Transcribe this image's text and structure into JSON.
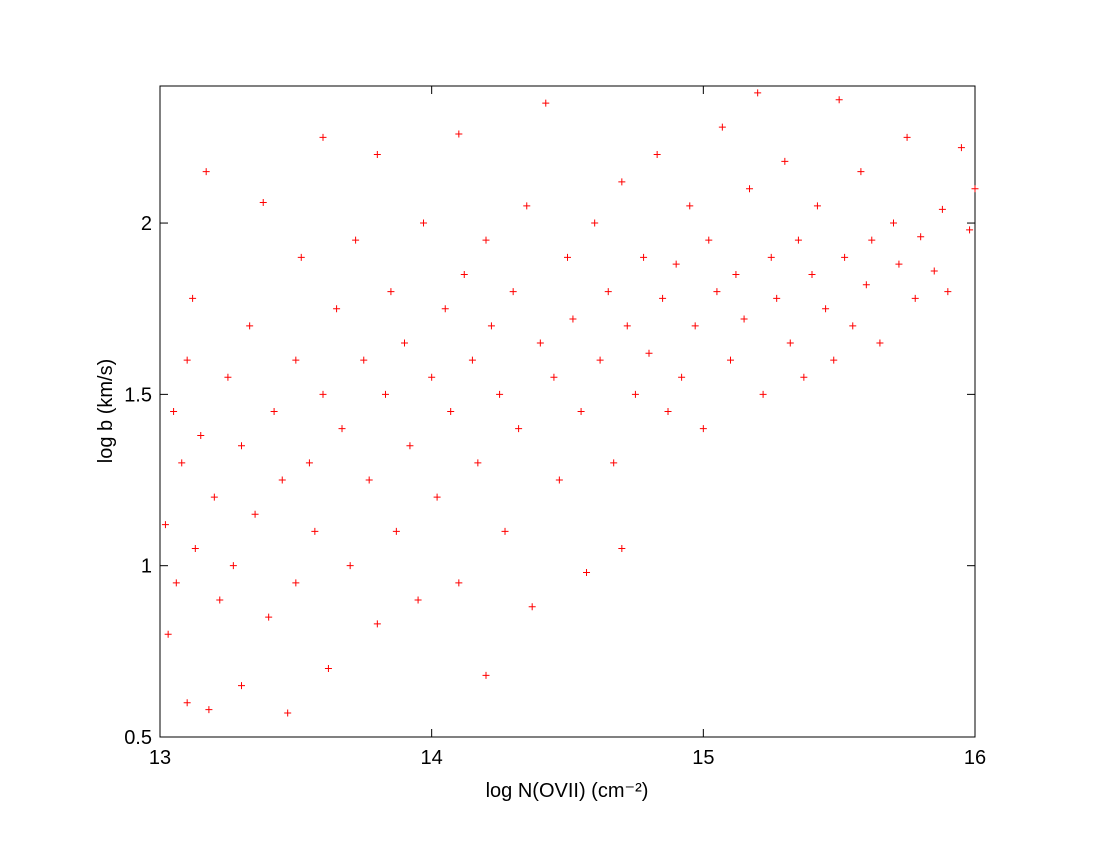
{
  "chart_data": {
    "type": "scatter",
    "xlabel": "log N(OVII) (cm⁻²)",
    "ylabel": "log b (km/s)",
    "color": "#ff0000",
    "marker": "+",
    "xlim": [
      13,
      16
    ],
    "xticks": [
      13,
      14,
      15,
      16
    ],
    "ylim": [
      0.5,
      2.4
    ],
    "yticks": [
      0.5,
      1,
      1.5,
      2
    ],
    "grid": false,
    "x": [
      13.02,
      13.03,
      13.05,
      13.06,
      13.08,
      13.1,
      13.1,
      13.12,
      13.13,
      13.15,
      13.17,
      13.18,
      13.2,
      13.22,
      13.25,
      13.27,
      13.3,
      13.3,
      13.33,
      13.35,
      13.38,
      13.4,
      13.42,
      13.45,
      13.47,
      13.5,
      13.5,
      13.52,
      13.55,
      13.57,
      13.6,
      13.6,
      13.62,
      13.65,
      13.67,
      13.7,
      13.72,
      13.75,
      13.77,
      13.8,
      13.8,
      13.83,
      13.85,
      13.87,
      13.9,
      13.92,
      13.95,
      13.97,
      14.0,
      14.02,
      14.05,
      14.07,
      14.1,
      14.1,
      14.12,
      14.15,
      14.17,
      14.2,
      14.2,
      14.22,
      14.25,
      14.27,
      14.3,
      14.32,
      14.35,
      14.37,
      14.4,
      14.42,
      14.45,
      14.47,
      14.5,
      14.52,
      14.55,
      14.57,
      14.6,
      14.62,
      14.65,
      14.67,
      14.7,
      14.7,
      14.72,
      14.75,
      14.78,
      14.8,
      14.83,
      14.85,
      14.87,
      14.9,
      14.92,
      14.95,
      14.97,
      15.0,
      15.02,
      15.05,
      15.07,
      15.1,
      15.12,
      15.15,
      15.17,
      15.2,
      15.22,
      15.25,
      15.27,
      15.3,
      15.32,
      15.35,
      15.37,
      15.4,
      15.42,
      15.45,
      15.48,
      15.5,
      15.52,
      15.55,
      15.58,
      15.6,
      15.62,
      15.65,
      15.7,
      15.72,
      15.75,
      15.78,
      15.8,
      15.85,
      15.88,
      15.9,
      15.95,
      15.98,
      16.0
    ],
    "values": [
      1.12,
      0.8,
      1.45,
      0.95,
      1.3,
      0.6,
      1.6,
      1.78,
      1.05,
      1.38,
      2.15,
      0.58,
      1.2,
      0.9,
      1.55,
      1.0,
      1.35,
      0.65,
      1.7,
      1.15,
      2.06,
      0.85,
      1.45,
      1.25,
      0.57,
      1.6,
      0.95,
      1.9,
      1.3,
      1.1,
      1.5,
      2.25,
      0.7,
      1.75,
      1.4,
      1.0,
      1.95,
      1.6,
      1.25,
      0.83,
      2.2,
      1.5,
      1.8,
      1.1,
      1.65,
      1.35,
      0.9,
      2.0,
      1.55,
      1.2,
      1.75,
      1.45,
      0.95,
      2.26,
      1.85,
      1.6,
      1.3,
      0.68,
      1.95,
      1.7,
      1.5,
      1.1,
      1.8,
      1.4,
      2.05,
      0.88,
      1.65,
      2.35,
      1.55,
      1.25,
      1.9,
      1.72,
      1.45,
      0.98,
      2.0,
      1.6,
      1.8,
      1.3,
      1.05,
      2.12,
      1.7,
      1.5,
      1.9,
      1.62,
      2.2,
      1.78,
      1.45,
      1.88,
      1.55,
      2.05,
      1.7,
      1.4,
      1.95,
      1.8,
      2.28,
      1.6,
      1.85,
      1.72,
      2.1,
      2.38,
      1.5,
      1.9,
      1.78,
      2.18,
      1.65,
      1.95,
      1.55,
      1.85,
      2.05,
      1.75,
      1.6,
      2.36,
      1.9,
      1.7,
      2.15,
      1.82,
      1.95,
      1.65,
      2.0,
      1.88,
      2.25,
      1.78,
      1.96,
      1.86,
      2.04,
      1.8,
      2.22,
      1.98,
      2.1
    ]
  }
}
